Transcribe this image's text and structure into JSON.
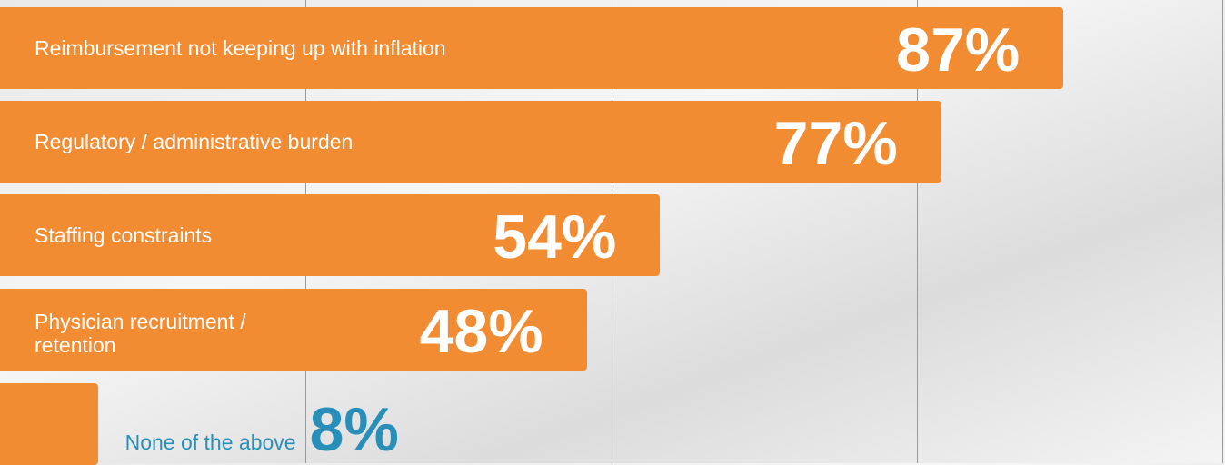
{
  "chart_data": {
    "type": "bar",
    "orientation": "horizontal",
    "categories": [
      "Reimbursement not keeping up with inflation",
      "Regulatory / administrative burden",
      "Staffing constraints",
      "Physician recruitment / retention",
      "None of the above"
    ],
    "values": [
      87,
      77,
      54,
      48,
      8
    ],
    "value_labels": [
      "87%",
      "77%",
      "54%",
      "48%",
      "8%"
    ],
    "color": "#f28c33",
    "outside_label_color": "#2a8fb8",
    "xlim": [
      0,
      100
    ],
    "xticks": [
      25,
      50,
      75,
      100
    ],
    "grid": true
  }
}
